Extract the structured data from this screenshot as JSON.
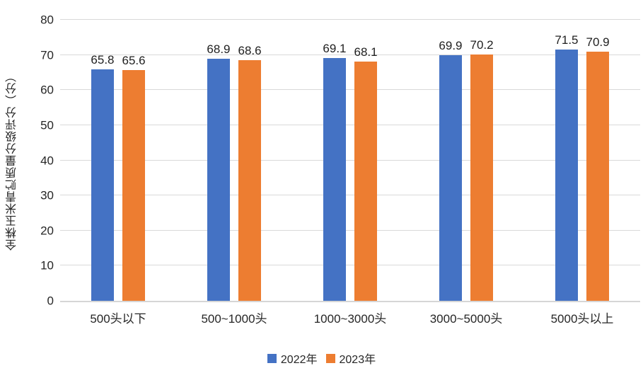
{
  "chart_data": {
    "type": "bar",
    "categories": [
      "500头以下",
      "500~1000头",
      "1000~3000头",
      "3000~5000头",
      "5000头以上"
    ],
    "series": [
      {
        "name": "2022年",
        "color": "#4472C4",
        "values": [
          65.8,
          68.9,
          69.1,
          69.9,
          71.5
        ]
      },
      {
        "name": "2023年",
        "color": "#ED7D31",
        "values": [
          65.6,
          68.6,
          68.1,
          70.2,
          70.9
        ]
      }
    ],
    "title": "",
    "xlabel": "",
    "ylabel": "全株玉米青贮质量分级评分（分）",
    "ylim": [
      0,
      80
    ],
    "ytick_step": 10,
    "grid": true,
    "legend_position": "bottom",
    "colors": {
      "gridline": "#d9d9d9",
      "axis_line": "#d6d6d6",
      "text": "#262626"
    }
  }
}
